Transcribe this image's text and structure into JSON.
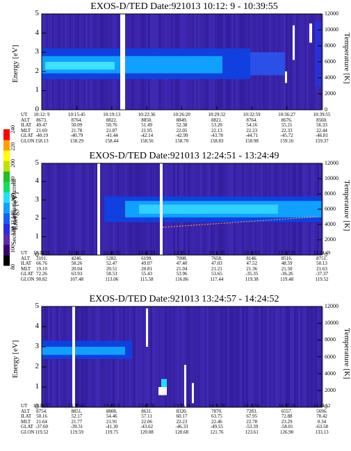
{
  "colorbar": {
    "title": "Second Harmonic Current",
    "ticks": [
      "80",
      "100",
      "120",
      "140",
      "160",
      "180",
      "200",
      "220",
      "240"
    ],
    "colors": [
      "#000000",
      "#3a0070",
      "#5a2ab0",
      "#2a2ae0",
      "#1060ff",
      "#10a0ff",
      "#20e0ff",
      "#10e060",
      "#20c020",
      "#c0e000",
      "#ffff00",
      "#ffa000",
      "#ff0000"
    ]
  },
  "eph_labels": [
    "UT",
    "ALT",
    "ILAT",
    "MLT",
    "GLAT",
    "GLON"
  ],
  "chart_data": [
    {
      "type": "heatmap",
      "title": "EXOS-D/TED   Date:921013  10:12: 9 - 10:39:55",
      "ylabel": "Energy [eV]",
      "ylabel_right": "Temperature [K]",
      "ylim": [
        0,
        5
      ],
      "yticks": [
        "0",
        "1",
        "2",
        "3",
        "4",
        "5"
      ],
      "ylim_right": [
        0,
        12000
      ],
      "yticks_right": [
        "0",
        "2000",
        "4000",
        "6000",
        "8000",
        "10000",
        "12000"
      ],
      "eph": [
        [
          "10:12: 9",
          "10:15:45",
          "10:19:13",
          "10:22:36",
          "10:26:20",
          "10:29:32",
          "10:32:59",
          "10:36:27",
          "10:39:55"
        ],
        [
          "8673.",
          "8764.",
          "8822.",
          "8850.",
          "8849.",
          "8821.",
          "8764.",
          "8676.",
          "8560."
        ],
        [
          "49.47",
          "50.09",
          "50.76",
          "51.49",
          "52.38",
          "53.20",
          "54.16",
          "55.21",
          "56.33"
        ],
        [
          "21.69",
          "21.78",
          "21.87",
          "21.95",
          "22.05",
          "22.13",
          "22.23",
          "22.33",
          "22.44"
        ],
        [
          "-40.19",
          "-40.79",
          "-41.44",
          "-42.14",
          "-42.99",
          "-43.78",
          "-44.71",
          "-45.72",
          "-46.81"
        ],
        [
          "158.13",
          "158.29",
          "158.44",
          "158.56",
          "158.70",
          "158.83",
          "158.98",
          "159.16",
          "159.37"
        ]
      ]
    },
    {
      "type": "heatmap",
      "title": "EXOS-D/TED   Date:921013  12:24:51 - 13:24:49",
      "ylabel": "Energy [eV]",
      "ylabel_right": "Temperature [K]",
      "ylim": [
        0,
        5
      ],
      "yticks": [
        "0",
        "1",
        "2",
        "3",
        "4",
        "5"
      ],
      "ylim_right": [
        0,
        12000
      ],
      "yticks_right": [
        "0",
        "2000",
        "4000",
        "6000",
        "8000",
        "10000",
        "12000"
      ],
      "eph": [
        [
          "12:24:51",
          "12:32:27",
          "12:39:55",
          "12:47:23",
          "12:55: 7",
          "13: 2:25",
          "13: 9:53",
          "13:17:21",
          "13:24:49"
        ],
        [
          "3101.",
          "4246.",
          "5282.",
          "6199.",
          "7008.",
          "7658.",
          "8146.",
          "8516.",
          "8751."
        ],
        [
          "66.76",
          "58.26",
          "52.47",
          "49.07",
          "47.40",
          "47.03",
          "47.52",
          "48.59",
          "50.13"
        ],
        [
          "19.10",
          "20.04",
          "20.51",
          "20.81",
          "21.04",
          "21.21",
          "21.36",
          "21.50",
          "21.63"
        ],
        [
          "72.26",
          "63.93",
          "58.53",
          "55.43",
          "53.96",
          "53.65",
          "-35.35",
          "-36.26",
          "-37.37"
        ],
        [
          "90.82",
          "107.48",
          "113.06",
          "115.58",
          "116.86",
          "117.44",
          "119.38",
          "119.48",
          "119.52"
        ]
      ]
    },
    {
      "type": "heatmap",
      "title": "EXOS-D/TED   Date:921013  13:24:57 - 14:24:52",
      "ylabel": "Energy [eV]",
      "ylabel_right": "Temperature [K]",
      "ylim": [
        0,
        5
      ],
      "yticks": [
        "0",
        "1",
        "2",
        "3",
        "4",
        "5"
      ],
      "ylim_right": [
        0,
        12000
      ],
      "yticks_right": [
        "0",
        "2000",
        "4000",
        "6000",
        "8000",
        "10000",
        "12000"
      ],
      "eph": [
        [
          "13:24:57",
          "13:32:41",
          "13:40: 9",
          "13:47:35",
          "13:55: 0",
          "14: 2:28",
          "14: 9:56",
          "14:17:24",
          "14:24:52"
        ],
        [
          "8754.",
          "8851.",
          "8808.",
          "8631.",
          "8320.",
          "7870.",
          "7283.",
          "6557.",
          "5696."
        ],
        [
          "50.16",
          "52.17",
          "54.46",
          "57.11",
          "60.17",
          "63.75",
          "67.95",
          "72.88",
          "78.42"
        ],
        [
          "21.64",
          "21.77",
          "21.91",
          "22.06",
          "22.23",
          "22.46",
          "22.78",
          "23.29",
          "0.34"
        ],
        [
          "-37.60",
          "-39.31",
          "-41.30",
          "-43.62",
          "-46.33",
          "-49.55",
          "-53.39",
          "-58.01",
          "-63.58"
        ],
        [
          "119.52",
          "119.59",
          "119.75",
          "120.08",
          "120.68",
          "121.76",
          "123.61",
          "126.90",
          "133.13"
        ]
      ]
    }
  ]
}
